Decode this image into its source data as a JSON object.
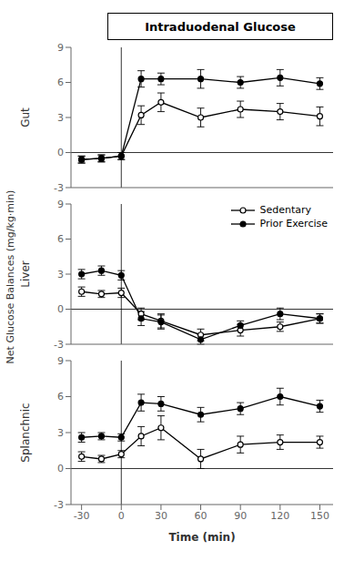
{
  "title": "Intraduodenal Glucose",
  "ylabel": "Net Glucose Balances (mg/kg·min)",
  "chart_data": [
    {
      "type": "line",
      "ylabel": "Gut",
      "x": [
        -30,
        -15,
        0,
        15,
        30,
        60,
        90,
        120,
        150
      ],
      "series": [
        {
          "name": "Sedentary",
          "color": "#000000",
          "marker": "open_circle",
          "values": [
            -0.6,
            -0.5,
            -0.3,
            3.2,
            4.3,
            3.0,
            3.7,
            3.5,
            3.1
          ],
          "errors": [
            0.3,
            0.3,
            0.3,
            0.8,
            0.8,
            0.8,
            0.7,
            0.7,
            0.8
          ]
        },
        {
          "name": "Prior Exercise",
          "color": "#000000",
          "marker": "filled_circle",
          "values": [
            -0.6,
            -0.5,
            -0.3,
            6.3,
            6.3,
            6.3,
            6.0,
            6.4,
            5.9
          ],
          "errors": [
            0.3,
            0.3,
            0.3,
            0.7,
            0.5,
            0.8,
            0.5,
            0.7,
            0.5
          ]
        }
      ],
      "xlim": [
        -38,
        160
      ],
      "xticks": [
        -30,
        0,
        30,
        60,
        90,
        120,
        150
      ],
      "ylim": [
        -3,
        9
      ],
      "yticks": [
        -3,
        0,
        3,
        6,
        9
      ],
      "hlines": [
        0
      ],
      "vlines": [
        0
      ],
      "tick_labels": "y"
    },
    {
      "type": "line",
      "ylabel": "Liver",
      "x": [
        -30,
        -15,
        0,
        15,
        30,
        60,
        90,
        120,
        150
      ],
      "series": [
        {
          "name": "Sedentary",
          "color": "#000000",
          "marker": "open_circle",
          "values": [
            1.5,
            1.3,
            1.4,
            -0.4,
            -1.0,
            -2.2,
            -1.8,
            -1.5,
            -0.8
          ],
          "errors": [
            0.4,
            0.3,
            0.4,
            0.5,
            0.6,
            0.5,
            0.5,
            0.4,
            0.4
          ]
        },
        {
          "name": "Prior Exercise",
          "color": "#000000",
          "marker": "filled_circle",
          "values": [
            3.0,
            3.3,
            2.9,
            -0.8,
            -1.1,
            -2.6,
            -1.4,
            -0.4,
            -0.8
          ],
          "errors": [
            0.4,
            0.4,
            0.4,
            0.6,
            0.6,
            0.4,
            0.4,
            0.5,
            0.4
          ]
        }
      ],
      "xlim": [
        -38,
        160
      ],
      "xticks": [
        -30,
        0,
        30,
        60,
        90,
        120,
        150
      ],
      "ylim": [
        -3,
        9
      ],
      "yticks": [
        -3,
        0,
        3,
        6,
        9
      ],
      "hlines": [
        0
      ],
      "vlines": [
        0
      ],
      "tick_labels": "y",
      "legend": "upper right"
    },
    {
      "type": "line",
      "ylabel": "Splanchnic",
      "xlabel": "Time (min)",
      "x": [
        -30,
        -15,
        0,
        15,
        30,
        60,
        90,
        120,
        150
      ],
      "series": [
        {
          "name": "Sedentary",
          "color": "#000000",
          "marker": "open_circle",
          "values": [
            1.0,
            0.8,
            1.2,
            2.7,
            3.4,
            0.8,
            2.0,
            2.2,
            2.2
          ],
          "errors": [
            0.4,
            0.3,
            0.3,
            0.8,
            1.0,
            0.8,
            0.7,
            0.6,
            0.5
          ]
        },
        {
          "name": "Prior Exercise",
          "color": "#000000",
          "marker": "filled_circle",
          "values": [
            2.6,
            2.7,
            2.6,
            5.5,
            5.4,
            4.5,
            5.0,
            6.0,
            5.2
          ],
          "errors": [
            0.4,
            0.3,
            0.3,
            0.7,
            0.6,
            0.6,
            0.5,
            0.7,
            0.5
          ]
        }
      ],
      "xlim": [
        -38,
        160
      ],
      "xticks": [
        -30,
        0,
        30,
        60,
        90,
        120,
        150
      ],
      "ylim": [
        -3,
        9
      ],
      "yticks": [
        -3,
        0,
        3,
        6,
        9
      ],
      "hlines": [
        0
      ],
      "vlines": [
        0
      ]
    }
  ]
}
